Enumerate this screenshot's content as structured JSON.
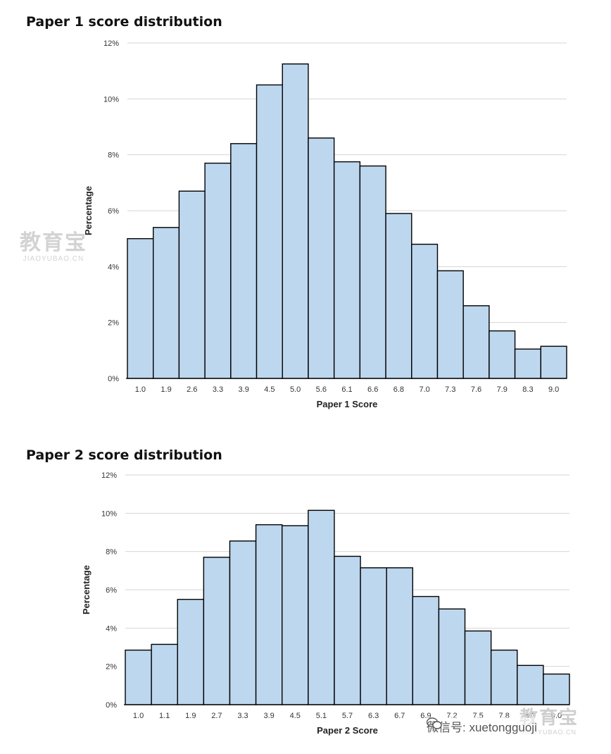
{
  "chart_data": [
    {
      "type": "bar",
      "title": "Paper 1 score distribution",
      "xlabel": "Paper 1 Score",
      "ylabel": "Percentage",
      "ylim": [
        0,
        12
      ],
      "yticks": [
        "0%",
        "2%",
        "4%",
        "6%",
        "8%",
        "10%",
        "12%"
      ],
      "grid": true,
      "categories": [
        "1.0",
        "1.9",
        "2.6",
        "3.3",
        "3.9",
        "4.5",
        "5.0",
        "5.6",
        "6.1",
        "6.6",
        "6.8",
        "7.0",
        "7.3",
        "7.6",
        "7.9",
        "8.3",
        "9.0"
      ],
      "values": [
        5.0,
        5.4,
        6.7,
        7.7,
        8.4,
        10.5,
        11.25,
        8.6,
        7.75,
        7.6,
        5.9,
        4.8,
        3.85,
        2.6,
        1.7,
        1.05,
        1.15
      ]
    },
    {
      "type": "bar",
      "title": "Paper 2 score distribution",
      "xlabel": "Paper 2 Score",
      "ylabel": "Percentage",
      "ylim": [
        0,
        12
      ],
      "yticks": [
        "0%",
        "2%",
        "4%",
        "6%",
        "8%",
        "10%",
        "12%"
      ],
      "grid": true,
      "categories": [
        "1.0",
        "1.1",
        "1.9",
        "2.7",
        "3.3",
        "3.9",
        "4.5",
        "5.1",
        "5.7",
        "6.3",
        "6.7",
        "6.9",
        "7.2",
        "7.5",
        "7.8",
        "8.3",
        "9.0"
      ],
      "values": [
        2.85,
        3.15,
        5.5,
        7.7,
        8.55,
        9.4,
        9.35,
        10.15,
        7.75,
        7.15,
        7.15,
        5.65,
        5.0,
        3.85,
        2.85,
        2.05,
        1.6
      ]
    }
  ],
  "watermarks": {
    "left_big": "教育宝",
    "left_small": "JIAOYUBAO.CN",
    "right_wechat": "微信号: xuetongguoji",
    "right_logo": "教育宝",
    "right_logo_small": "JIAOYUBAO.CN"
  },
  "colors": {
    "bar_fill": "#bdd7ee",
    "bar_stroke": "#000000",
    "grid": "#d6d6d6"
  },
  "icons": {
    "wechat": "wechat-icon"
  }
}
